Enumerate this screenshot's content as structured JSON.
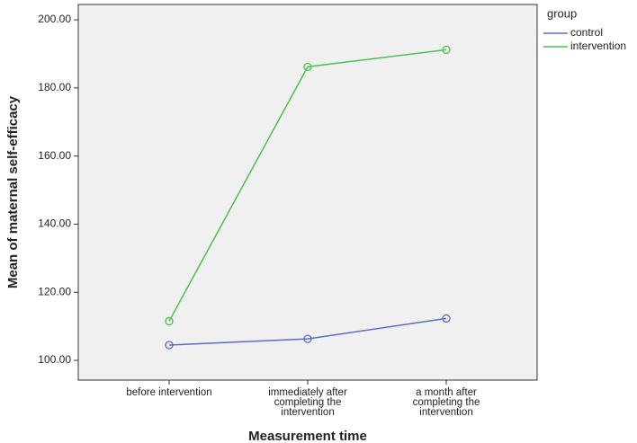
{
  "chart_data": {
    "type": "line",
    "x_label": "Measurement time",
    "y_label": "Mean of maternal self-efficacy",
    "legend_title": "group",
    "categories": [
      "before intervention",
      "immediately  after\ncompleting the\nintervention",
      "a  month  after\ncompleting the\nintervention"
    ],
    "series": [
      {
        "name": "control",
        "color": "#5a6fc0",
        "values": [
          104.5,
          106.3,
          112.3
        ]
      },
      {
        "name": "intervention",
        "color": "#4cc04c",
        "values": [
          111.5,
          186.2,
          191.2
        ]
      }
    ],
    "ylim": [
      94.2,
      204.5
    ],
    "yticks": [
      {
        "value": 100,
        "label": "100.00"
      },
      {
        "value": 120,
        "label": "120.00"
      },
      {
        "value": 140,
        "label": "140.00"
      },
      {
        "value": 160,
        "label": "160.00"
      },
      {
        "value": 180,
        "label": "180.00"
      },
      {
        "value": 200,
        "label": "200.00"
      }
    ],
    "grid": false
  }
}
